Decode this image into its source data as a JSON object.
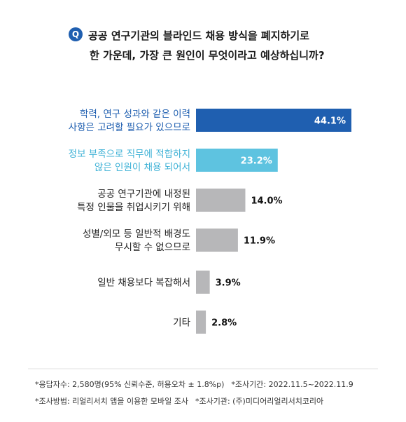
{
  "question": {
    "badge": "Q",
    "line1": "공공 연구기관의 블라인드 채용 방식을 폐지하기로",
    "line2": "한 가운데, 가장 큰 원인이 무엇이라고 예상하십니까?"
  },
  "chart_data": {
    "type": "bar",
    "orientation": "horizontal",
    "categories": [
      [
        "학력, 연구 성과와 같은 이력",
        "사항은 고려할 필요가 있으므로"
      ],
      [
        "정보 부족으로 직무에 적합하지",
        "않은 인원이 채용 되어서"
      ],
      [
        "공공 연구기관에 내정된",
        "특정 인물을 취업시키기 위해"
      ],
      [
        "성별/외모 등 일반적 배경도",
        "무시할 수 없으므로"
      ],
      [
        "일반 채용보다 복잡해서"
      ],
      [
        "기타"
      ]
    ],
    "values": [
      44.1,
      23.2,
      14.0,
      11.9,
      3.9,
      2.8
    ],
    "value_labels": [
      "44.1%",
      "23.2%",
      "14.0%",
      "11.9%",
      "3.9%",
      "2.8%"
    ],
    "unit": "%",
    "colors": [
      "#1f5fb0",
      "#5ec3e0",
      "#b7b7b9",
      "#b7b7b9",
      "#b7b7b9",
      "#b7b7b9"
    ],
    "label_colors": [
      "#1f5fb0",
      "#3fb2d6",
      "#222222",
      "#222222",
      "#222222",
      "#222222"
    ],
    "value_label_inside": [
      true,
      true,
      false,
      false,
      false,
      false
    ],
    "xlim": [
      0,
      44.1
    ],
    "grid": false,
    "legend": "none"
  },
  "footer": {
    "line1_a": "*응답자수: 2,580명(95% 신뢰수준, 허용오차 ± 1.8%p)",
    "line1_b": "*조사기간: 2022.11.5~2022.11.9",
    "line2_a": "*조사방법: 리얼리서치 앱을 이용한 모바일 조사",
    "line2_b": "*조사기관: (주)미디어리얼리서치코리아"
  }
}
